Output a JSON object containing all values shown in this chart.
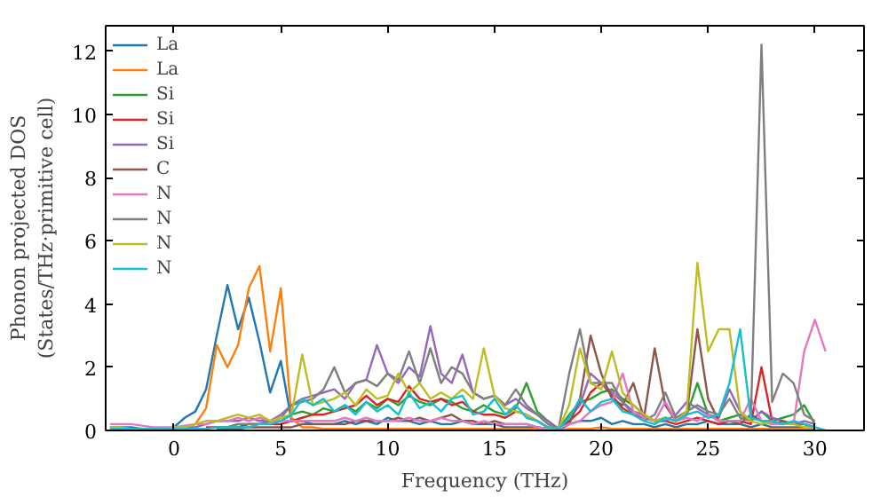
{
  "chart_data": {
    "type": "line",
    "xlabel": "Frequency (THz)",
    "ylabel": "Phonon projected DOS\n(States/THz·primitive cell)",
    "xlim": [
      -3.2,
      32.3
    ],
    "ylim": [
      0,
      12.8
    ],
    "xticks": [
      0,
      5,
      10,
      15,
      20,
      25,
      30
    ],
    "yticks": [
      0,
      2,
      4,
      6,
      8,
      10,
      12
    ],
    "grid": false,
    "legend": "top left",
    "x": [
      -3,
      -2.5,
      -2,
      -1.5,
      -1,
      -0.5,
      0,
      0.5,
      1,
      1.5,
      2,
      2.5,
      3,
      3.5,
      4,
      4.5,
      5,
      5.5,
      6,
      6.5,
      7,
      7.5,
      8,
      8.5,
      9,
      9.5,
      10,
      10.5,
      11,
      11.5,
      12,
      12.5,
      13,
      13.5,
      14,
      14.5,
      15,
      15.5,
      16,
      16.5,
      17,
      17.5,
      18,
      18.5,
      19,
      19.5,
      20,
      20.5,
      21,
      21.5,
      22,
      22.5,
      23,
      23.5,
      24,
      24.5,
      25,
      25.5,
      26,
      26.5,
      27,
      27.5,
      28,
      28.5,
      29,
      29.5,
      30,
      30.5
    ],
    "series": [
      {
        "name": "La",
        "color": "#1f77b4",
        "values": [
          0.1,
          0.1,
          0.1,
          0.05,
          0.05,
          0.05,
          0.1,
          0.4,
          0.6,
          1.3,
          3.0,
          4.6,
          3.2,
          4.2,
          2.8,
          1.2,
          2.2,
          0.3,
          0.3,
          0.2,
          0.2,
          0.2,
          0.3,
          0.2,
          0.3,
          0.2,
          0.4,
          0.3,
          0.3,
          0.2,
          0.3,
          0.2,
          0.2,
          0.3,
          0.2,
          0.2,
          0.2,
          0.1,
          0.1,
          0.1,
          0.1,
          0.05,
          0,
          0.2,
          0.3,
          0.3,
          0.4,
          0.2,
          0.3,
          0.2,
          0.2,
          0.1,
          0.2,
          0.1,
          0.2,
          0.2,
          0.3,
          0.2,
          0.2,
          0.2,
          0.1,
          0.2,
          0.1,
          0.1,
          0.1,
          0.1,
          0.05,
          null
        ]
      },
      {
        "name": "La",
        "color": "#ff7f0e",
        "values": [
          null,
          null,
          null,
          null,
          null,
          null,
          0.05,
          0.05,
          0.2,
          0.7,
          2.7,
          2.0,
          2.7,
          4.5,
          5.2,
          2.5,
          4.5,
          0.4,
          0.1,
          0.1,
          0.05,
          0.05,
          0.05,
          0.05,
          0.05,
          0.05,
          0.05,
          0.05,
          0.05,
          0.05,
          0.05,
          0.05,
          0.05,
          0.05,
          0.05,
          0.05,
          0.05,
          0.05,
          0.05,
          0.05,
          0.05,
          0.05,
          0,
          0.05,
          0.05,
          0.05,
          0.1,
          0.05,
          0.05,
          0.05,
          0.05,
          0.05,
          0.05,
          0.05,
          0.05,
          0.05,
          0.05,
          0.05,
          0.05,
          0.05,
          0.05,
          0.05,
          0.05,
          0.05,
          0.05,
          0.05,
          0.05,
          null
        ]
      },
      {
        "name": "Si",
        "color": "#2ca02c",
        "values": [
          null,
          null,
          null,
          null,
          null,
          null,
          null,
          null,
          null,
          null,
          0.1,
          0.1,
          0.2,
          0.2,
          0.2,
          0.3,
          0.3,
          0.5,
          0.6,
          0.5,
          0.7,
          0.6,
          0.8,
          0.6,
          0.9,
          0.7,
          1.0,
          0.8,
          1.1,
          0.9,
          0.8,
          1.0,
          0.9,
          0.7,
          0.6,
          0.8,
          0.6,
          0.5,
          0.7,
          1.5,
          0.6,
          0.3,
          0.05,
          0.5,
          0.9,
          1.0,
          1.2,
          1.3,
          1.0,
          0.8,
          0.5,
          0.3,
          0.4,
          0.3,
          0.5,
          1.5,
          0.5,
          0.3,
          0.4,
          0.5,
          0.3,
          0.6,
          0.3,
          0.4,
          0.5,
          0.8,
          0.2,
          null
        ]
      },
      {
        "name": "Si",
        "color": "#d62728",
        "values": [
          null,
          null,
          null,
          null,
          null,
          null,
          null,
          null,
          null,
          0.1,
          0.1,
          0.1,
          0.1,
          0.2,
          0.2,
          0.2,
          0.2,
          0.3,
          0.4,
          0.5,
          0.5,
          0.6,
          0.7,
          0.8,
          1.1,
          0.8,
          1.0,
          0.9,
          1.4,
          1.0,
          0.9,
          1.0,
          0.8,
          0.9,
          0.6,
          0.5,
          0.5,
          0.4,
          0.6,
          0.5,
          0.3,
          0.1,
          0.05,
          0.3,
          0.6,
          1.2,
          1.5,
          1.1,
          0.7,
          0.5,
          0.4,
          0.3,
          0.3,
          0.2,
          0.3,
          0.4,
          0.3,
          0.2,
          0.3,
          0.3,
          0.2,
          2.0,
          0.3,
          0.2,
          0.2,
          0.2,
          0.1,
          null
        ]
      },
      {
        "name": "Si",
        "color": "#9467bd",
        "values": [
          null,
          null,
          null,
          null,
          null,
          null,
          0.05,
          0.1,
          0.1,
          0.2,
          0.3,
          0.3,
          0.3,
          0.4,
          0.3,
          0.3,
          0.5,
          0.8,
          1.0,
          1.1,
          1.2,
          1.3,
          1.0,
          1.5,
          1.6,
          2.7,
          1.8,
          1.5,
          2.0,
          1.7,
          3.3,
          1.8,
          1.5,
          2.4,
          1.2,
          1.0,
          1.1,
          0.8,
          1.0,
          0.7,
          0.5,
          0.3,
          0.05,
          0.4,
          0.8,
          1.8,
          1.5,
          1.2,
          0.9,
          0.6,
          0.5,
          0.3,
          0.3,
          0.5,
          0.9,
          0.7,
          0.5,
          0.4,
          1.3,
          0.6,
          0.3,
          0.6,
          0.4,
          0.3,
          0.2,
          0.3,
          0.2,
          null
        ]
      },
      {
        "name": "C",
        "color": "#8c564b",
        "values": [
          null,
          null,
          null,
          null,
          null,
          null,
          null,
          null,
          null,
          null,
          0.05,
          0.05,
          0.05,
          0.1,
          0.1,
          0.1,
          0.1,
          0.1,
          0.2,
          0.2,
          0.2,
          0.2,
          0.2,
          0.3,
          0.3,
          0.3,
          0.3,
          0.4,
          0.3,
          0.4,
          0.3,
          0.4,
          0.5,
          0.3,
          0.3,
          0.2,
          0.3,
          0.2,
          0.2,
          0.2,
          0.1,
          0.05,
          0.05,
          0.2,
          1.0,
          3.0,
          1.8,
          1.0,
          0.8,
          1.5,
          0.4,
          2.6,
          0.8,
          0.3,
          0.5,
          3.2,
          1.0,
          0.3,
          0.3,
          0.2,
          0.5,
          0.3,
          0.2,
          0.3,
          0.2,
          0.2,
          0.1,
          null
        ]
      },
      {
        "name": "N",
        "color": "#e377c2",
        "values": [
          0.2,
          0.2,
          0.2,
          0.15,
          0.1,
          0.1,
          0.1,
          0.15,
          0.2,
          0.2,
          0.3,
          0.3,
          0.4,
          0.3,
          0.4,
          0.3,
          0.3,
          0.3,
          0.3,
          0.3,
          0.3,
          0.3,
          0.4,
          0.3,
          0.4,
          0.3,
          0.3,
          0.3,
          0.4,
          0.3,
          0.3,
          0.4,
          0.3,
          0.3,
          0.2,
          0.3,
          0.2,
          0.2,
          0.2,
          0.2,
          0.1,
          0.05,
          0.05,
          0.2,
          0.3,
          0.6,
          0.8,
          0.9,
          1.8,
          0.6,
          0.4,
          0.3,
          0.9,
          0.3,
          0.4,
          0.3,
          0.5,
          0.3,
          0.3,
          0.3,
          1.0,
          0.3,
          0.2,
          0.2,
          0.2,
          2.5,
          3.5,
          2.5
        ]
      },
      {
        "name": "N",
        "color": "#7f7f7f",
        "values": [
          null,
          null,
          null,
          null,
          null,
          null,
          null,
          null,
          null,
          null,
          0.1,
          0.1,
          0.2,
          0.2,
          0.2,
          0.3,
          0.4,
          0.8,
          0.9,
          1.0,
          1.3,
          2.0,
          1.2,
          1.5,
          1.6,
          1.4,
          1.8,
          1.6,
          2.5,
          1.5,
          2.6,
          1.5,
          2.0,
          1.8,
          1.2,
          1.0,
          1.1,
          0.8,
          1.3,
          0.8,
          0.5,
          0.2,
          0.05,
          1.8,
          3.2,
          1.5,
          1.5,
          1.5,
          0.9,
          0.5,
          0.3,
          0.5,
          1.2,
          0.4,
          0.6,
          0.8,
          0.6,
          0.5,
          1.0,
          0.4,
          0.3,
          12.2,
          0.9,
          1.8,
          1.5,
          0.5,
          0.3,
          null
        ]
      },
      {
        "name": "N",
        "color": "#bcbd22",
        "values": [
          0.1,
          0.1,
          0.05,
          0.05,
          0.05,
          0.05,
          0.1,
          0.1,
          0.2,
          0.3,
          0.3,
          0.4,
          0.5,
          0.4,
          0.5,
          0.3,
          0.4,
          0.5,
          2.4,
          0.8,
          0.9,
          1.0,
          1.2,
          0.8,
          1.3,
          1.0,
          1.1,
          1.8,
          1.2,
          1.5,
          1.0,
          1.2,
          1.0,
          1.3,
          1.0,
          2.6,
          1.1,
          0.7,
          0.6,
          0.5,
          0.3,
          0.1,
          0.05,
          0.8,
          2.6,
          1.5,
          1.3,
          2.5,
          1.2,
          0.8,
          0.5,
          0.3,
          0.4,
          0.3,
          0.6,
          5.3,
          2.5,
          3.2,
          3.2,
          0.6,
          0.3,
          0.2,
          0.3,
          0.2,
          0.2,
          0.1,
          0.1,
          null
        ]
      },
      {
        "name": "N",
        "color": "#17becf",
        "values": [
          0.05,
          0.05,
          0.05,
          0.05,
          0.05,
          0.05,
          0.05,
          0.05,
          0.05,
          0.05,
          0.1,
          0.1,
          0.1,
          0.1,
          0.2,
          0.2,
          0.3,
          0.5,
          1.0,
          0.8,
          1.0,
          0.6,
          0.8,
          0.5,
          0.9,
          0.6,
          0.8,
          0.5,
          1.2,
          0.7,
          0.9,
          0.6,
          1.0,
          1.1,
          0.5,
          0.6,
          1.0,
          0.5,
          0.8,
          0.4,
          0.3,
          0.1,
          0.05,
          0.4,
          1.0,
          0.6,
          0.9,
          1.0,
          0.6,
          0.5,
          0.3,
          0.2,
          0.4,
          0.3,
          0.5,
          0.6,
          0.4,
          0.5,
          1.5,
          3.2,
          0.4,
          0.3,
          0.3,
          0.2,
          0.3,
          0.2,
          0.1,
          0
        ]
      }
    ]
  }
}
